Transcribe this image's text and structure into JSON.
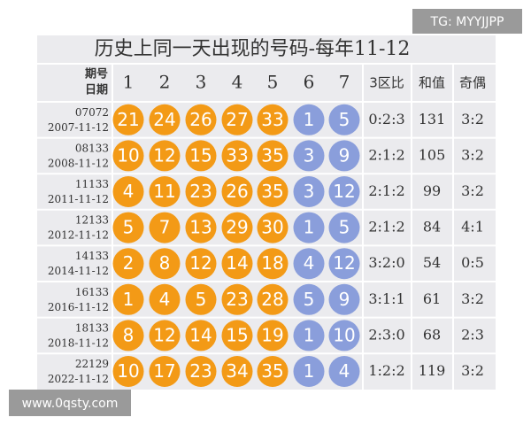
{
  "title": "历史上同一天出现的号码-每年11-12",
  "watermark_top": "TG: MYYJJPP",
  "watermark_bottom": "www.0qsty.com",
  "header": {
    "issue": "期号",
    "date": "日期",
    "balls": [
      "1",
      "2",
      "3",
      "4",
      "5",
      "6",
      "7"
    ],
    "zone_ratio": "3区比",
    "sum": "和值",
    "odd_even": "奇偶"
  },
  "rows": [
    {
      "issue": "07072",
      "date": "2007-11-12",
      "front": [
        21,
        24,
        26,
        27,
        33
      ],
      "back": [
        1,
        5
      ],
      "zone_ratio": "0:2:3",
      "sum": 131,
      "odd_even": "3:2"
    },
    {
      "issue": "08133",
      "date": "2008-11-12",
      "front": [
        10,
        12,
        15,
        33,
        35
      ],
      "back": [
        3,
        9
      ],
      "zone_ratio": "2:1:2",
      "sum": 105,
      "odd_even": "3:2"
    },
    {
      "issue": "11133",
      "date": "2011-11-12",
      "front": [
        4,
        11,
        23,
        26,
        35
      ],
      "back": [
        3,
        12
      ],
      "zone_ratio": "2:1:2",
      "sum": 99,
      "odd_even": "3:2"
    },
    {
      "issue": "12133",
      "date": "2012-11-12",
      "front": [
        5,
        7,
        13,
        29,
        30
      ],
      "back": [
        1,
        5
      ],
      "zone_ratio": "2:1:2",
      "sum": 84,
      "odd_even": "4:1"
    },
    {
      "issue": "14133",
      "date": "2014-11-12",
      "front": [
        2,
        8,
        12,
        14,
        18
      ],
      "back": [
        4,
        12
      ],
      "zone_ratio": "3:2:0",
      "sum": 54,
      "odd_even": "0:5"
    },
    {
      "issue": "16133",
      "date": "2016-11-12",
      "front": [
        1,
        4,
        5,
        23,
        28
      ],
      "back": [
        5,
        9
      ],
      "zone_ratio": "3:1:1",
      "sum": 61,
      "odd_even": "3:2"
    },
    {
      "issue": "18133",
      "date": "2018-11-12",
      "front": [
        8,
        12,
        14,
        15,
        19
      ],
      "back": [
        1,
        10
      ],
      "zone_ratio": "2:3:0",
      "sum": 68,
      "odd_even": "2:3"
    },
    {
      "issue": "22129",
      "date": "2022-11-12",
      "front": [
        10,
        17,
        23,
        34,
        35
      ],
      "back": [
        1,
        4
      ],
      "zone_ratio": "1:2:2",
      "sum": 119,
      "odd_even": "3:2"
    }
  ]
}
